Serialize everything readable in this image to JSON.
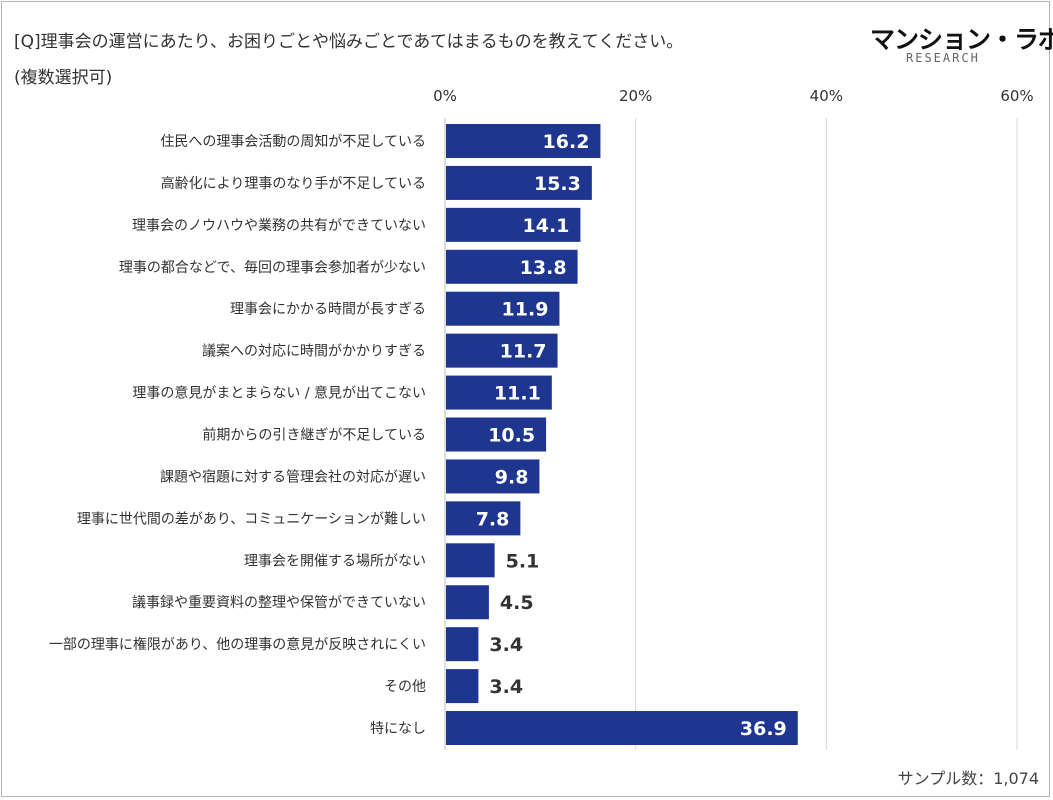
{
  "header": {
    "question": "[Q]理事会の運営にあたり、お困りごとや悩みごとであてはまるものを教えてください。",
    "note": "(複数選択可)"
  },
  "logo": {
    "main": "マンション・ラボ",
    "sub": "RESEARCH"
  },
  "footer": {
    "sample": "サンプル数：1,074"
  },
  "colors": {
    "bar": "#1f3691",
    "grid": "#d9d9d9",
    "label_inside": "#ffffff",
    "label_outside": "#333333"
  },
  "chart_data": {
    "type": "bar",
    "orientation": "horizontal",
    "title": "[Q]理事会の運営にあたり、お困りごとや悩みごとであてはまるものを教えてください。",
    "xlabel": "",
    "ylabel": "",
    "xlim": [
      0,
      60
    ],
    "ticks": [
      0,
      20,
      40,
      60
    ],
    "tick_labels": [
      "0%",
      "20%",
      "40%",
      "60%"
    ],
    "grid": true,
    "categories": [
      "住民への理事会活動の周知が不足している",
      "高齢化により理事のなり手が不足している",
      "理事会のノウハウや業務の共有ができていない",
      "理事の都合などで、毎回の理事会参加者が少ない",
      "理事会にかかる時間が長すぎる",
      "議案への対応に時間がかかりすぎる",
      "理事の意見がまとまらない / 意見が出てこない",
      "前期からの引き継ぎが不足している",
      "課題や宿題に対する管理会社の対応が遅い",
      "理事に世代間の差があり、コミュニケーションが難しい",
      "理事会を開催する場所がない",
      "議事録や重要資料の整理や保管ができていない",
      "一部の理事に権限があり、他の理事の意見が反映されにくい",
      "その他",
      "特になし"
    ],
    "values": [
      16.2,
      15.3,
      14.1,
      13.8,
      11.9,
      11.7,
      11.1,
      10.5,
      9.8,
      7.8,
      5.1,
      4.5,
      3.4,
      3.4,
      36.9
    ],
    "value_labels": [
      "16.2",
      "15.3",
      "14.1",
      "13.8",
      "11.9",
      "11.7",
      "11.1",
      "10.5",
      "9.8",
      "7.8",
      "5.1",
      "4.5",
      "3.4",
      "3.4",
      "36.9"
    ]
  }
}
